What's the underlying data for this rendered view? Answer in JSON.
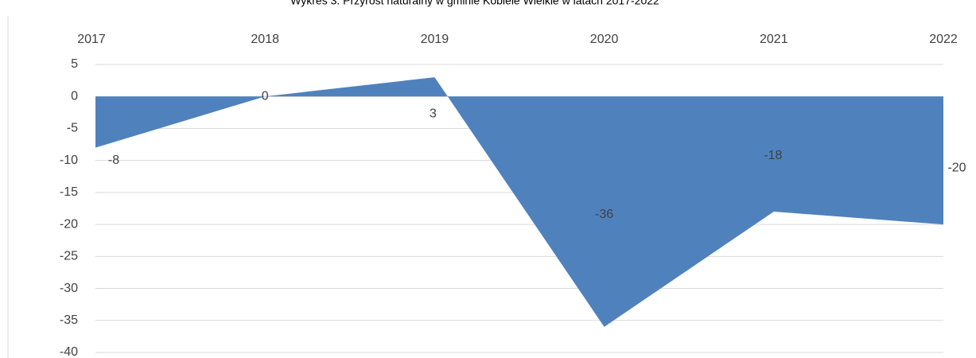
{
  "chart_data": {
    "type": "area",
    "title": "Wykres 3. Przyrost naturalny w gminie Kobiele Wielkie w latach 2017-2022",
    "categories": [
      "2017",
      "2018",
      "2019",
      "2020",
      "2021",
      "2022"
    ],
    "values": [
      -8,
      0,
      3,
      -36,
      -18,
      -20
    ],
    "color": "#4f81bd",
    "ylim": [
      -40,
      5
    ],
    "yticks": [
      -40,
      -35,
      -30,
      -25,
      -20,
      -15,
      -10,
      -5,
      0,
      5
    ],
    "grid": true
  }
}
